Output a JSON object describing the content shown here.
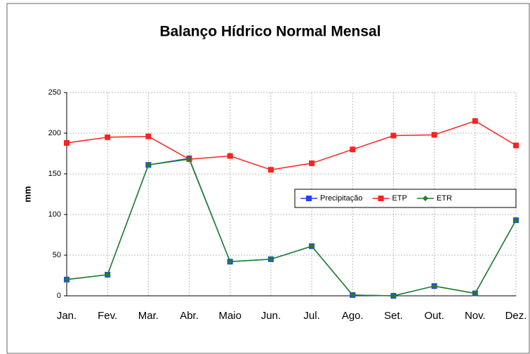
{
  "chart_data": {
    "type": "line",
    "title": "Balanço Hídrico Normal Mensal",
    "y_label": "mm",
    "categories": [
      "Jan.",
      "Fev.",
      "Mar.",
      "Abr.",
      "Maio",
      "Jun.",
      "Jul.",
      "Ago.",
      "Set.",
      "Out.",
      "Nov.",
      "Dez."
    ],
    "series": [
      {
        "name": "Precipitação",
        "color": "#2040ff",
        "marker": "square",
        "values": [
          20,
          26,
          161,
          169,
          42,
          45,
          61,
          1,
          0,
          12,
          3,
          93
        ]
      },
      {
        "name": "ETP",
        "color": "#ff2020",
        "marker": "square",
        "values": [
          188,
          195,
          196,
          168,
          172,
          155,
          163,
          180,
          197,
          198,
          215,
          185
        ]
      },
      {
        "name": "ETR",
        "color": "#208020",
        "marker": "diamond",
        "values": [
          20,
          26,
          161,
          168,
          42,
          45,
          61,
          1,
          0,
          12,
          3,
          93
        ]
      }
    ],
    "ylim": [
      0,
      250
    ],
    "yticks": [
      0,
      50,
      100,
      150,
      200,
      250
    ],
    "grid": true,
    "legend": "right"
  }
}
